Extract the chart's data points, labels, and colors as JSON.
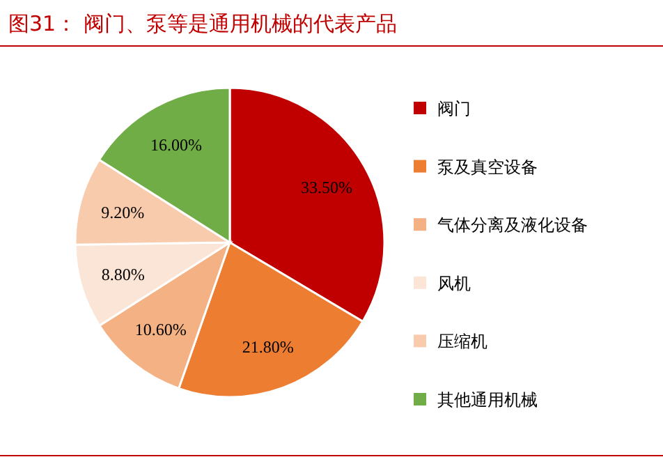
{
  "chart_data": {
    "type": "pie",
    "title": "图31： 阀门、泵等是通用机械的代表产品",
    "categories": [
      "阀门",
      "泵及真空设备",
      "气体分离及液化设备",
      "风机",
      "压缩机",
      "其他通用机械"
    ],
    "values": [
      33.5,
      21.8,
      10.6,
      8.8,
      9.2,
      16.0
    ],
    "value_labels": [
      "33.50%",
      "21.80%",
      "10.60%",
      "8.80%",
      "9.20%",
      "16.00%"
    ],
    "colors": [
      "#c00000",
      "#ed7d31",
      "#f4b183",
      "#fbe5d6",
      "#f8cbad",
      "#70ad47"
    ],
    "legend": "right"
  }
}
